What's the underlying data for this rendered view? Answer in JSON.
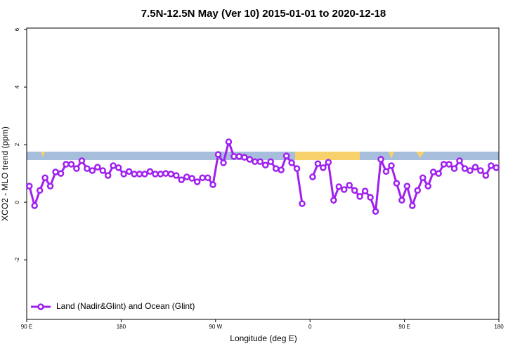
{
  "chart_data": {
    "type": "line",
    "title": "7.5N-12.5N May (Ver 10)   2015-01-01 to 2020-12-18",
    "x_label": "Longitude (deg E)",
    "y_label": "XCO2 - MLO trend (ppm)",
    "xlim": [
      90,
      540
    ],
    "ylim": [
      -4.07,
      6.05
    ],
    "xticks": [
      {
        "value": 90,
        "label": "90 E"
      },
      180,
      {
        "value": 270,
        "label": "90 W"
      },
      {
        "value": 360,
        "label": "0"
      },
      {
        "value": 450,
        "label": "90 E"
      },
      {
        "value": 540,
        "label": "180"
      }
    ],
    "yticks": [
      -2,
      0,
      2,
      4,
      6
    ],
    "legend_position": "lower left",
    "x": [
      92.5,
      97.5,
      102.5,
      107.5,
      112.5,
      117.5,
      122.5,
      127.5,
      132.5,
      137.5,
      142.5,
      147.5,
      152.5,
      157.5,
      162.5,
      167.5,
      172.5,
      177.5,
      182.5,
      187.5,
      192.5,
      197.5,
      202.5,
      207.5,
      212.5,
      217.5,
      222.5,
      227.5,
      232.5,
      237.5,
      242.5,
      247.5,
      252.5,
      257.5,
      262.5,
      267.5,
      272.5,
      277.5,
      282.5,
      287.5,
      292.5,
      297.5,
      302.5,
      307.5,
      312.5,
      317.5,
      322.5,
      327.5,
      332.5,
      337.5,
      342.5,
      347.5,
      352.5,
      357.5,
      362.5,
      367.5,
      372.5,
      377.5,
      382.5,
      387.5,
      392.5,
      397.5,
      402.5,
      407.5,
      412.5,
      417.5,
      422.5,
      427.5,
      432.5,
      437.5,
      442.5,
      447.5,
      452.5,
      457.5,
      462.5,
      467.5,
      472.5,
      477.5,
      482.5,
      487.5,
      492.5,
      497.5,
      502.5,
      507.5,
      512.5,
      517.5,
      522.5,
      527.5,
      532.5,
      537.5
    ],
    "series": [
      {
        "name": "Land (Nadir&Glint) and Ocean (Glint)",
        "color": "#a020f0",
        "values": [
          0.56,
          -0.12,
          0.41,
          0.85,
          0.56,
          1.05,
          1.0,
          1.32,
          1.32,
          1.17,
          1.44,
          1.17,
          1.1,
          1.22,
          1.1,
          0.93,
          1.27,
          1.2,
          0.98,
          1.07,
          0.98,
          0.98,
          0.98,
          1.07,
          0.98,
          0.98,
          1.0,
          0.98,
          0.93,
          0.78,
          0.88,
          0.83,
          0.71,
          0.85,
          0.85,
          0.61,
          1.66,
          1.37,
          2.1,
          1.59,
          1.59,
          1.56,
          1.49,
          1.41,
          1.41,
          1.29,
          1.41,
          1.17,
          1.12,
          1.61,
          1.37,
          1.17,
          -0.05,
          null,
          0.88,
          1.34,
          1.2,
          1.39,
          0.07,
          0.54,
          0.44,
          0.59,
          0.41,
          0.2,
          0.39,
          0.17,
          -0.32,
          1.49,
          1.07,
          1.27,
          0.66,
          0.07,
          0.56,
          -0.12,
          0.41,
          0.85,
          0.56,
          1.05,
          1.0,
          1.32,
          1.32,
          1.17,
          1.44,
          1.17,
          1.1,
          1.22,
          1.1,
          0.93,
          1.27,
          1.2
        ]
      }
    ]
  }
}
